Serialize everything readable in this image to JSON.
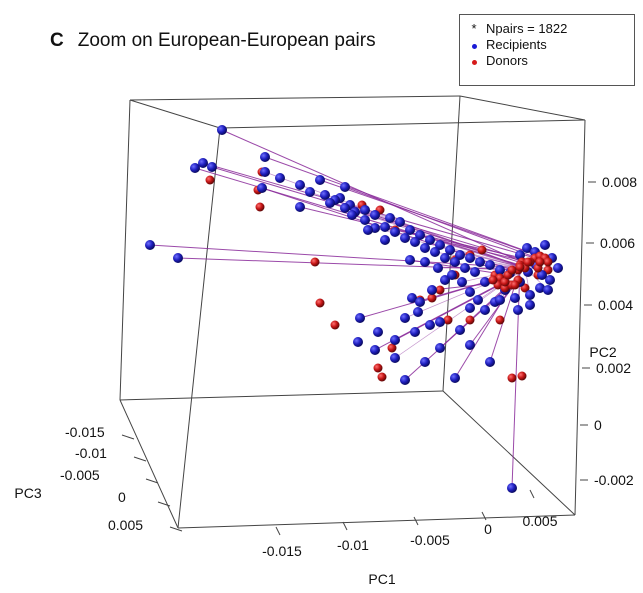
{
  "panel_letter": "C",
  "title": "Zoom on European-European pairs",
  "legend": {
    "entries": [
      {
        "symbol": "*",
        "label": "Npairs =  1822",
        "color": "#333333"
      },
      {
        "symbol": "dot",
        "label": "Recipients",
        "color": "#1a1ad6"
      },
      {
        "symbol": "dot",
        "label": "Donors",
        "color": "#d61a1a"
      }
    ]
  },
  "colors": {
    "recipient": "#1c1cb0",
    "donor": "#c81414",
    "line": "#8a2a9a",
    "box": "#444444"
  },
  "chart_data": {
    "type": "scatter",
    "subtype": "3d-scatter",
    "title": "",
    "axes": {
      "x": {
        "label": "PC1",
        "ticks": [
          "-0.015",
          "-0.01",
          "-0.005",
          "0",
          "0.005"
        ],
        "lim": [
          -0.018,
          0.007
        ]
      },
      "y": {
        "label": "PC2",
        "ticks": [
          "-0.002",
          "0",
          "0.002",
          "0.004",
          "0.006",
          "0.008"
        ],
        "lim": [
          -0.003,
          0.009
        ]
      },
      "z": {
        "label": "PC3",
        "ticks": [
          "-0.015",
          "-0.01",
          "-0.005",
          "0",
          "0.005"
        ],
        "lim": [
          -0.017,
          0.007
        ]
      }
    },
    "npairs": 1822,
    "series": [
      {
        "name": "Recipients",
        "color": "#1c1cb0"
      },
      {
        "name": "Donors",
        "color": "#c81414"
      }
    ],
    "pairs": [
      {
        "recipient": [
          222,
          130
        ],
        "donor": [
          522,
          262
        ]
      },
      {
        "recipient": [
          203,
          163
        ],
        "donor": [
          535,
          258
        ]
      },
      {
        "recipient": [
          212,
          167
        ],
        "donor": [
          530,
          262
        ]
      },
      {
        "recipient": [
          195,
          168
        ],
        "donor": [
          520,
          265
        ]
      },
      {
        "recipient": [
          265,
          157
        ],
        "donor": [
          540,
          256
        ]
      },
      {
        "recipient": [
          150,
          245
        ],
        "donor": [
          525,
          268
        ]
      },
      {
        "recipient": [
          178,
          258
        ],
        "donor": [
          518,
          270
        ]
      },
      {
        "recipient": [
          320,
          180
        ],
        "donor": [
          545,
          258
        ]
      },
      {
        "recipient": [
          345,
          187
        ],
        "donor": [
          548,
          262
        ]
      },
      {
        "recipient": [
          512,
          488
        ],
        "donor": [
          520,
          267
        ]
      },
      {
        "recipient": [
          360,
          318
        ],
        "donor": [
          500,
          278
        ]
      },
      {
        "recipient": [
          395,
          340
        ],
        "donor": [
          505,
          282
        ]
      },
      {
        "recipient": [
          375,
          350
        ],
        "donor": [
          498,
          285
        ]
      },
      {
        "recipient": [
          405,
          380
        ],
        "donor": [
          510,
          285
        ]
      },
      {
        "recipient": [
          440,
          348
        ],
        "donor": [
          505,
          288
        ]
      },
      {
        "recipient": [
          455,
          378
        ],
        "donor": [
          512,
          285
        ]
      },
      {
        "recipient": [
          420,
          302
        ],
        "donor": [
          493,
          280
        ]
      },
      {
        "recipient": [
          432,
          290
        ],
        "donor": [
          505,
          282
        ]
      },
      {
        "recipient": [
          470,
          345
        ],
        "donor": [
          518,
          280
        ]
      },
      {
        "recipient": [
          490,
          362
        ],
        "donor": [
          515,
          285
        ]
      },
      {
        "recipient": [
          300,
          207
        ],
        "donor": [
          528,
          262
        ]
      },
      {
        "recipient": [
          330,
          203
        ],
        "donor": [
          538,
          268
        ]
      },
      {
        "recipient": [
          385,
          227
        ],
        "donor": [
          540,
          262
        ]
      },
      {
        "recipient": [
          410,
          260
        ],
        "donor": [
          508,
          275
        ]
      },
      {
        "recipient": [
          262,
          188
        ],
        "donor": [
          512,
          270
        ]
      }
    ],
    "extra_recipients": [
      [
        265,
        172
      ],
      [
        280,
        178
      ],
      [
        300,
        185
      ],
      [
        310,
        192
      ],
      [
        325,
        195
      ],
      [
        340,
        198
      ],
      [
        350,
        205
      ],
      [
        365,
        210
      ],
      [
        375,
        215
      ],
      [
        390,
        218
      ],
      [
        400,
        222
      ],
      [
        410,
        230
      ],
      [
        420,
        235
      ],
      [
        430,
        240
      ],
      [
        440,
        245
      ],
      [
        450,
        250
      ],
      [
        460,
        255
      ],
      [
        470,
        258
      ],
      [
        480,
        262
      ],
      [
        490,
        265
      ],
      [
        500,
        270
      ],
      [
        510,
        273
      ],
      [
        520,
        255
      ],
      [
        527,
        248
      ],
      [
        535,
        252
      ],
      [
        545,
        245
      ],
      [
        552,
        258
      ],
      [
        558,
        268
      ],
      [
        550,
        280
      ],
      [
        540,
        288
      ],
      [
        530,
        295
      ],
      [
        515,
        298
      ],
      [
        505,
        290
      ],
      [
        495,
        302
      ],
      [
        485,
        282
      ],
      [
        475,
        272
      ],
      [
        465,
        268
      ],
      [
        455,
        262
      ],
      [
        445,
        258
      ],
      [
        435,
        252
      ],
      [
        425,
        248
      ],
      [
        415,
        242
      ],
      [
        405,
        238
      ],
      [
        395,
        232
      ],
      [
        385,
        240
      ],
      [
        375,
        228
      ],
      [
        365,
        220
      ],
      [
        355,
        212
      ],
      [
        345,
        208
      ],
      [
        335,
        200
      ],
      [
        520,
        282
      ],
      [
        528,
        272
      ],
      [
        536,
        265
      ],
      [
        542,
        275
      ],
      [
        548,
        290
      ],
      [
        530,
        305
      ],
      [
        518,
        310
      ],
      [
        500,
        300
      ],
      [
        412,
        298
      ],
      [
        418,
        312
      ],
      [
        405,
        318
      ],
      [
        430,
        325
      ],
      [
        425,
        262
      ],
      [
        438,
        268
      ],
      [
        445,
        280
      ],
      [
        452,
        275
      ],
      [
        462,
        282
      ],
      [
        470,
        292
      ],
      [
        478,
        300
      ],
      [
        485,
        310
      ],
      [
        358,
        342
      ],
      [
        378,
        332
      ],
      [
        395,
        358
      ],
      [
        415,
        332
      ],
      [
        425,
        362
      ],
      [
        470,
        308
      ],
      [
        440,
        322
      ],
      [
        460,
        330
      ],
      [
        352,
        215
      ],
      [
        368,
        230
      ]
    ],
    "extra_donors": [
      [
        262,
        172
      ],
      [
        258,
        190
      ],
      [
        260,
        207
      ],
      [
        210,
        180
      ],
      [
        315,
        262
      ],
      [
        320,
        303
      ],
      [
        335,
        325
      ],
      [
        378,
        368
      ],
      [
        382,
        377
      ],
      [
        392,
        348
      ],
      [
        420,
        300
      ],
      [
        432,
        298
      ],
      [
        455,
        260
      ],
      [
        470,
        255
      ],
      [
        482,
        250
      ],
      [
        512,
        378
      ],
      [
        522,
        376
      ],
      [
        548,
        270
      ],
      [
        538,
        275
      ],
      [
        525,
        288
      ],
      [
        508,
        285
      ],
      [
        495,
        275
      ],
      [
        455,
        275
      ],
      [
        440,
        290
      ],
      [
        448,
        320
      ],
      [
        470,
        320
      ],
      [
        500,
        320
      ],
      [
        380,
        210
      ],
      [
        395,
        230
      ],
      [
        362,
        205
      ]
    ]
  }
}
